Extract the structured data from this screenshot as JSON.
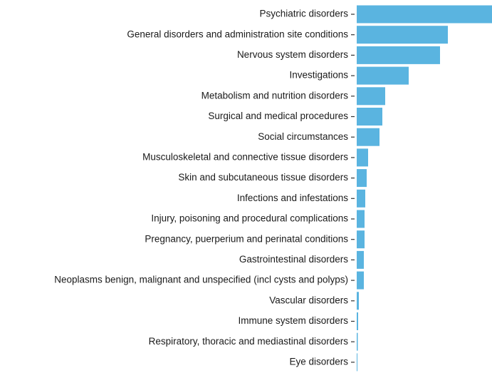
{
  "chart_data": {
    "type": "bar",
    "orientation": "horizontal",
    "title": "",
    "xlabel": "",
    "ylabel": "",
    "grid": false,
    "legend": "none",
    "bar_color": "#5ab4e0",
    "xlim": [
      0,
      190
    ],
    "categories": [
      "Psychiatric disorders",
      "General disorders and administration site conditions",
      "Nervous system disorders",
      "Investigations",
      "Metabolism and nutrition disorders",
      "Surgical and medical procedures",
      "Social circumstances",
      "Musculoskeletal and connective tissue disorders",
      "Skin and subcutaneous tissue disorders",
      "Infections and infestations",
      "Injury, poisoning and procedural complications",
      "Pregnancy, puerperium and perinatal conditions",
      "Gastrointestinal disorders",
      "Neoplasms benign, malignant and unspecified (incl cysts and polyps)",
      "Vascular disorders",
      "Immune system disorders",
      "Respiratory, thoracic and mediastinal disorders",
      "Eye disorders"
    ],
    "values": [
      190,
      128,
      117,
      73,
      40,
      36,
      32,
      16,
      14,
      12,
      11,
      11,
      10,
      10,
      3,
      2,
      1.5,
      1
    ]
  }
}
